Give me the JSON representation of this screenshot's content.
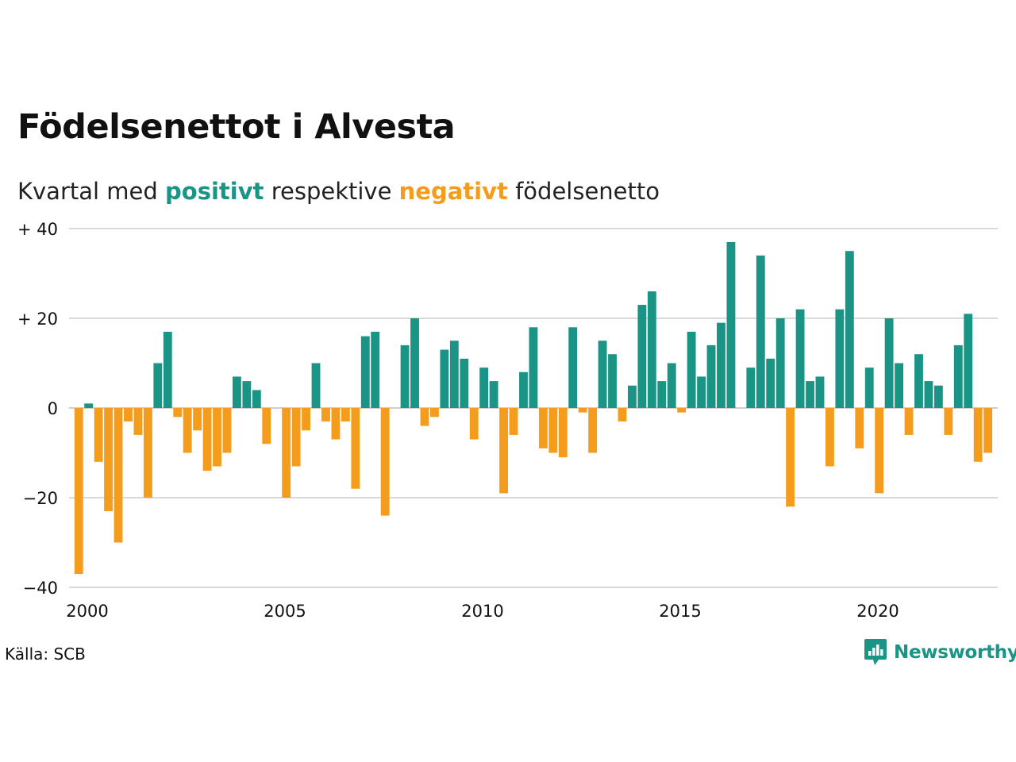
{
  "title": "Födelsenettot i Alvesta",
  "subtitle": {
    "prefix": "Kvartal med ",
    "positive_word": "positivt",
    "middle": " respektive ",
    "negative_word": "negativt",
    "suffix": " födelsenetto"
  },
  "source": "Källa: SCB",
  "brand": "Newsworthy",
  "colors": {
    "positive": "#1a9485",
    "negative": "#f49c1b",
    "grid": "#d9d9d9",
    "text": "#111111"
  },
  "chart_data": {
    "type": "bar",
    "title": "Födelsenettot i Alvesta",
    "xlabel": "",
    "ylabel": "",
    "ylim": [
      -40,
      40
    ],
    "yticks": [
      {
        "value": 40,
        "label": "+ 40"
      },
      {
        "value": 20,
        "label": "+ 20"
      },
      {
        "value": 0,
        "label": "0"
      },
      {
        "value": -20,
        "label": "−20"
      },
      {
        "value": -40,
        "label": "−40"
      }
    ],
    "xticks": [
      {
        "year": 2000,
        "label": "2000"
      },
      {
        "year": 2005,
        "label": "2005"
      },
      {
        "year": 2010,
        "label": "2010"
      },
      {
        "year": 2015,
        "label": "2015"
      },
      {
        "year": 2020,
        "label": "2020"
      }
    ],
    "x_start": "2000 Q1",
    "grid": true,
    "legend": "none",
    "values": [
      -37,
      1,
      -12,
      -23,
      -30,
      -3,
      -6,
      -20,
      10,
      17,
      -2,
      -10,
      -5,
      -14,
      -13,
      -10,
      7,
      6,
      4,
      -8,
      0,
      -20,
      -13,
      -5,
      10,
      -3,
      -7,
      -3,
      -18,
      16,
      17,
      -24,
      0,
      14,
      20,
      -4,
      -2,
      13,
      15,
      11,
      -7,
      9,
      6,
      -19,
      -6,
      8,
      18,
      -9,
      -10,
      -11,
      18,
      -1,
      -10,
      15,
      12,
      -3,
      5,
      23,
      26,
      6,
      10,
      -1,
      17,
      7,
      14,
      19,
      37,
      0,
      9,
      34,
      11,
      20,
      -22,
      22,
      6,
      7,
      -13,
      22,
      35,
      -9,
      9,
      -19,
      20,
      10,
      -6,
      12,
      6,
      5,
      -6,
      14,
      21,
      -12,
      -10
    ]
  }
}
